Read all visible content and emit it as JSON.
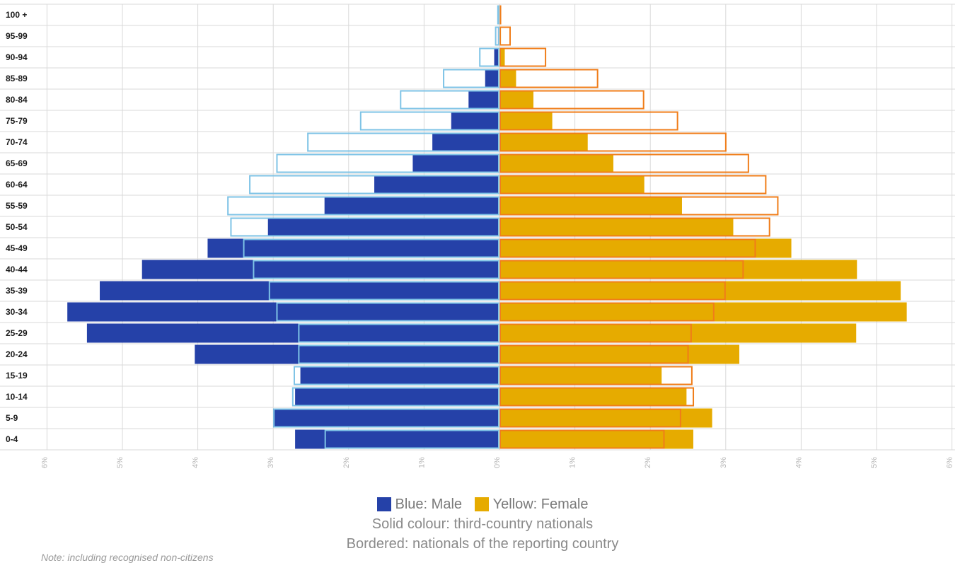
{
  "chart_data": {
    "type": "bar",
    "orientation": "horizontal",
    "categories": [
      "100 +",
      "95-99",
      "90-94",
      "85-89",
      "80-84",
      "75-79",
      "70-74",
      "65-69",
      "60-64",
      "55-59",
      "50-54",
      "45-49",
      "40-44",
      "35-39",
      "30-34",
      "25-29",
      "20-24",
      "15-19",
      "10-14",
      "5-9",
      "0-4"
    ],
    "x_ticks": [
      "6%",
      "5%",
      "4%",
      "3%",
      "2%",
      "1%",
      "0%",
      "1%",
      "2%",
      "3%",
      "4%",
      "5%",
      "6%"
    ],
    "xlim": [
      -6,
      6
    ],
    "grid": true,
    "series": [
      {
        "name": "Blue: Male",
        "style": "solid",
        "side": "left",
        "color": "#2541a8",
        "values": [
          0.01,
          0.02,
          0.07,
          0.19,
          0.41,
          0.64,
          0.89,
          1.15,
          1.66,
          2.32,
          3.07,
          3.87,
          4.74,
          5.3,
          5.73,
          5.47,
          4.04,
          2.64,
          2.71,
          3.0,
          2.71
        ]
      },
      {
        "name": "Yellow: Female",
        "style": "solid",
        "side": "right",
        "color": "#e6ab00",
        "values": [
          0.01,
          0.02,
          0.07,
          0.22,
          0.45,
          0.7,
          1.17,
          1.51,
          1.92,
          2.42,
          3.1,
          3.87,
          4.74,
          5.32,
          5.4,
          4.73,
          3.18,
          2.15,
          2.48,
          2.82,
          2.57
        ]
      },
      {
        "name": "Male nationals",
        "style": "bordered",
        "side": "left",
        "color": "#7ec3e6",
        "values": [
          0.03,
          0.06,
          0.27,
          0.75,
          1.32,
          1.85,
          2.55,
          2.96,
          3.32,
          3.61,
          3.57,
          3.4,
          3.27,
          3.06,
          2.96,
          2.67,
          2.67,
          2.73,
          2.75,
          3.0,
          2.32
        ]
      },
      {
        "name": "Female nationals",
        "style": "bordered",
        "side": "right",
        "color": "#f07d19",
        "values": [
          0.02,
          0.15,
          0.62,
          1.31,
          1.92,
          2.37,
          3.01,
          3.31,
          3.54,
          3.7,
          3.59,
          3.4,
          3.24,
          3.0,
          2.85,
          2.55,
          2.51,
          2.56,
          2.58,
          2.41,
          2.19
        ]
      }
    ]
  },
  "legend": {
    "male_label": "Blue: Male",
    "female_label": "Yellow: Female",
    "male_color": "#2541a8",
    "female_color": "#e6ab00",
    "line2": "Solid colour: third-country nationals",
    "line3": "Bordered: nationals of the reporting country"
  },
  "note": "Note: including recognised non-citizens"
}
